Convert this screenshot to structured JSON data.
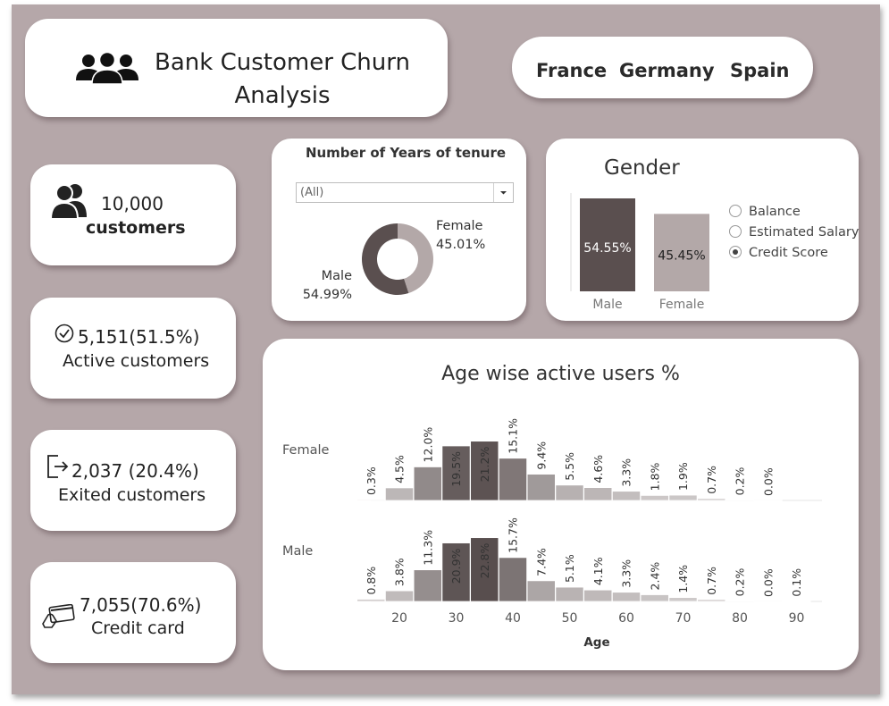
{
  "header": {
    "title_line1": "Bank Customer Churn",
    "title_line2": "Analysis"
  },
  "countries": [
    "France",
    "Germany",
    "Spain"
  ],
  "kpis": [
    {
      "value": "10,000",
      "label": "customers",
      "icon": "users-icon"
    },
    {
      "value": "5,151(51.5%)",
      "label": "Active customers",
      "icon": "check-circle-icon"
    },
    {
      "value": "2,037 (20.4%)",
      "label": "Exited customers",
      "icon": "exit-icon"
    },
    {
      "value": "7,055(70.6%)",
      "label": "Credit card",
      "icon": "credit-card-icon"
    }
  ],
  "tenure": {
    "title": "Number of Years of tenure",
    "filter_value": "(All)"
  },
  "gender": {
    "title": "Gender",
    "options": [
      "Balance",
      "Estimated Salary",
      "Credit Score"
    ],
    "selected": "Credit Score"
  },
  "age_chart": {
    "title": "Age wise active users %"
  },
  "colors": {
    "dark": "#5a4f4f",
    "light": "#b3a8a8",
    "frame": "#b5a7a9"
  },
  "chart_data": [
    {
      "type": "pie",
      "labels": [
        "Female",
        "Male"
      ],
      "values": [
        45.01,
        54.99
      ],
      "value_labels": [
        "45.01%",
        "54.99%"
      ]
    },
    {
      "type": "bar",
      "title": "Gender",
      "categories": [
        "Male",
        "Female"
      ],
      "values": [
        54.55,
        45.45
      ],
      "value_labels": [
        "54.55%",
        "45.45%"
      ]
    },
    {
      "type": "bar",
      "title": "Age wise active users %",
      "xlabel": "Age",
      "x_ticks": [
        20,
        30,
        40,
        50,
        60,
        70,
        80,
        90
      ],
      "rows": [
        {
          "name": "Female",
          "x": [
            15,
            20,
            25,
            30,
            35,
            40,
            45,
            50,
            55,
            60,
            65,
            70,
            75,
            80,
            85
          ],
          "values": [
            0.3,
            4.5,
            12.0,
            19.5,
            21.2,
            15.1,
            9.4,
            5.5,
            4.6,
            3.3,
            1.8,
            1.9,
            0.7,
            0.2,
            0.0
          ],
          "labels": [
            "0.3%",
            "4.5%",
            "12.0%",
            "19.5%",
            "21.2%",
            "15.1%",
            "9.4%",
            "5.5%",
            "4.6%",
            "3.3%",
            "1.8%",
            "1.9%",
            "0.7%",
            "0.2%",
            "0.0%"
          ]
        },
        {
          "name": "Male",
          "x": [
            15,
            20,
            25,
            30,
            35,
            40,
            45,
            50,
            55,
            60,
            65,
            70,
            75,
            80,
            85,
            90
          ],
          "values": [
            0.8,
            3.8,
            11.3,
            20.9,
            22.8,
            15.7,
            7.4,
            5.1,
            4.1,
            3.3,
            2.4,
            1.4,
            0.7,
            0.2,
            0.0,
            0.1
          ],
          "labels": [
            "0.8%",
            "3.8%",
            "11.3%",
            "20.9%",
            "22.8%",
            "15.7%",
            "7.4%",
            "5.1%",
            "4.1%",
            "3.3%",
            "2.4%",
            "1.4%",
            "0.7%",
            "0.2%",
            "0.0%",
            "0.1%"
          ]
        }
      ]
    }
  ]
}
